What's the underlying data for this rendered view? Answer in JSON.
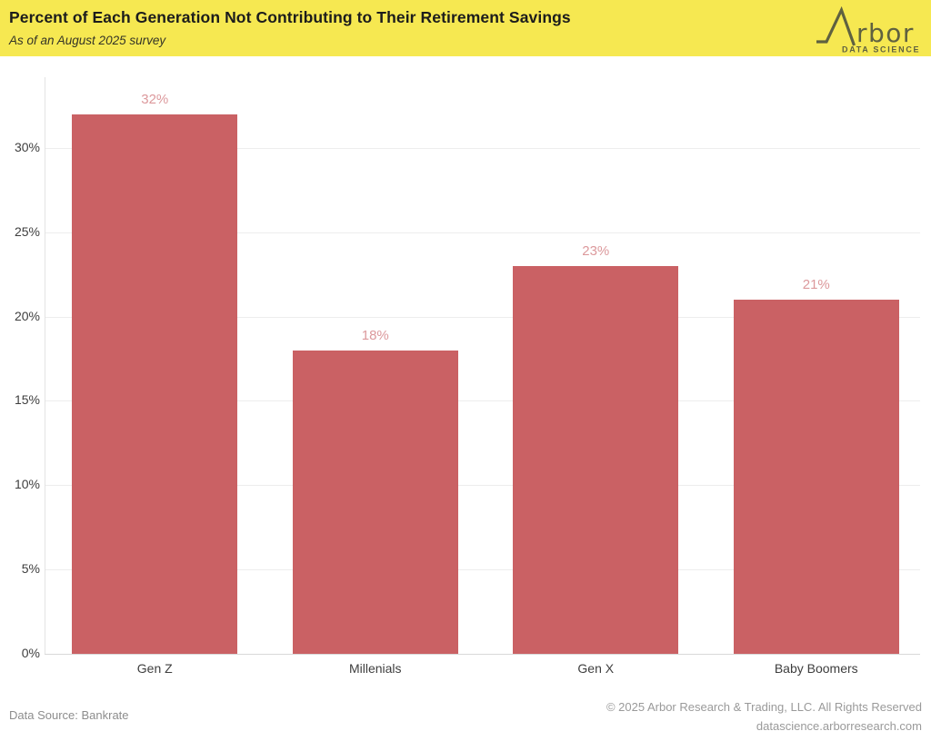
{
  "banner": {
    "title": "Percent of Each Generation Not Contributing to Their Retirement Savings",
    "subtitle": "As of an August 2025 survey",
    "background_color": "#f6e851",
    "logo": {
      "brand": "Arbor",
      "brand_letters": "rbor",
      "tagline": "DATA SCIENCE",
      "color": "#5f6140"
    }
  },
  "chart_data": {
    "type": "bar",
    "title": "Percent of Each Generation Not Contributing to Their Retirement Savings",
    "subtitle": "As of an August 2025 survey",
    "categories": [
      "Gen Z",
      "Millenials",
      "Gen X",
      "Baby Boomers"
    ],
    "values": [
      32,
      18,
      23,
      21
    ],
    "value_labels": [
      "32%",
      "18%",
      "23%",
      "21%"
    ],
    "xlabel": "",
    "ylabel": "",
    "ylim": [
      0,
      33
    ],
    "yticks": [
      0,
      5,
      10,
      15,
      20,
      25,
      30
    ],
    "ytick_labels": [
      "0%",
      "5%",
      "10%",
      "15%",
      "20%",
      "25%",
      "30%"
    ],
    "grid": "horizontal",
    "legend": "none",
    "bar_color": "#ca6164",
    "value_label_color": "#dc999c"
  },
  "footer": {
    "source": "Data Source: Bankrate",
    "copyright": "© 2025 Arbor Research & Trading, LLC. All Rights Reserved",
    "website": "datascience.arborresearch.com"
  }
}
